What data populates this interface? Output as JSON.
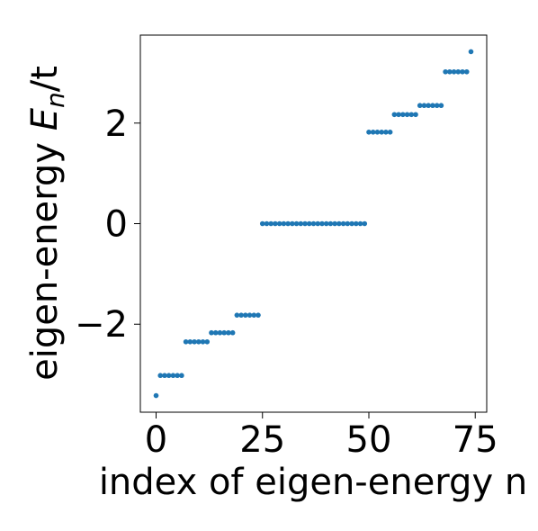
{
  "chart_data": {
    "type": "scatter",
    "xlabel": "index of eigen-energy n",
    "ylabel": {
      "prefix": "eigen-energy ",
      "symbol": "E",
      "subscript": "n",
      "suffix": "/t"
    },
    "xlim": [
      -3.7,
      77.7
    ],
    "ylim": [
      -3.75,
      3.75
    ],
    "x_ticks": [
      0,
      25,
      50,
      75
    ],
    "x_tick_labels": [
      "0",
      "25",
      "50",
      "75"
    ],
    "y_ticks": [
      -2,
      0,
      2
    ],
    "y_tick_labels": [
      "−2",
      "0",
      "2"
    ],
    "grid": false,
    "legend": "none",
    "marker_color": "#1f77b4",
    "series": [
      {
        "x": [
          0,
          1,
          2,
          3,
          4,
          5,
          6,
          7,
          8,
          9,
          10,
          11,
          12,
          13,
          14,
          15,
          16,
          17,
          18,
          19,
          20,
          21,
          22,
          23,
          24,
          25,
          26,
          27,
          28,
          29,
          30,
          31,
          32,
          33,
          34,
          35,
          36,
          37,
          38,
          39,
          40,
          41,
          42,
          43,
          44,
          45,
          46,
          47,
          48,
          49,
          50,
          51,
          52,
          53,
          54,
          55,
          56,
          57,
          58,
          59,
          60,
          61,
          62,
          63,
          64,
          65,
          66,
          67,
          68,
          69,
          70,
          71,
          72,
          73,
          74
        ],
        "y": [
          -3.42,
          -3.02,
          -3.02,
          -3.02,
          -3.02,
          -3.02,
          -3.02,
          -2.35,
          -2.35,
          -2.35,
          -2.35,
          -2.35,
          -2.35,
          -2.17,
          -2.17,
          -2.17,
          -2.17,
          -2.17,
          -2.17,
          -1.82,
          -1.82,
          -1.82,
          -1.82,
          -1.82,
          -1.82,
          0,
          0,
          0,
          0,
          0,
          0,
          0,
          0,
          0,
          0,
          0,
          0,
          0,
          0,
          0,
          0,
          0,
          0,
          0,
          0,
          0,
          0,
          0,
          0,
          0,
          1.82,
          1.82,
          1.82,
          1.82,
          1.82,
          1.82,
          2.17,
          2.17,
          2.17,
          2.17,
          2.17,
          2.17,
          2.35,
          2.35,
          2.35,
          2.35,
          2.35,
          2.35,
          3.02,
          3.02,
          3.02,
          3.02,
          3.02,
          3.02,
          3.42
        ]
      }
    ]
  }
}
